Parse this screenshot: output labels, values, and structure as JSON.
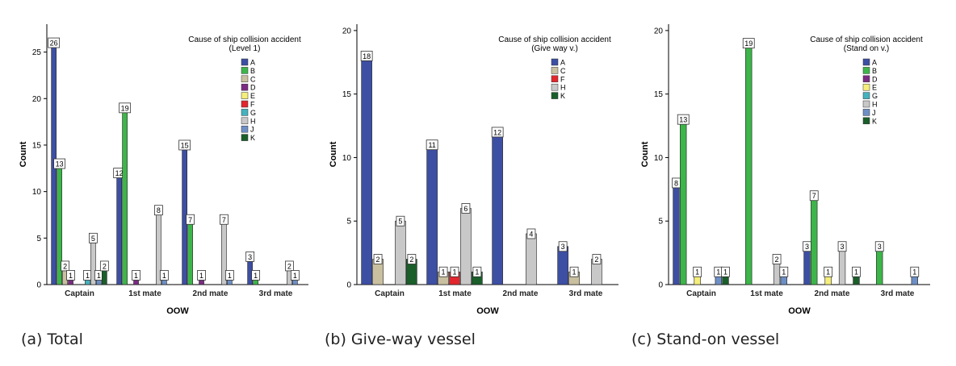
{
  "series_colors": {
    "A": "#3d4fa3",
    "B": "#3db54a",
    "C": "#c9c0a0",
    "D": "#7b2b83",
    "E": "#f5ee7a",
    "F": "#e3262d",
    "G": "#44b2bf",
    "H": "#c8c8c8",
    "J": "#6d8fc5",
    "K": "#1a5e2a"
  },
  "chart_data": [
    {
      "type": "bar",
      "xlabel": "OOW",
      "ylabel": "Count",
      "ylim": [
        0,
        28
      ],
      "yticks": [
        0,
        5,
        10,
        15,
        20,
        25
      ],
      "categories": [
        "Captain",
        "1st mate",
        "2nd mate",
        "3rd mate"
      ],
      "legend": {
        "title": "Cause of ship collision accident",
        "subtitle": "(Level 1)",
        "placement": "top-right"
      },
      "series": [
        {
          "name": "A",
          "values": [
            26,
            12,
            15,
            3
          ]
        },
        {
          "name": "B",
          "values": [
            13,
            19,
            7,
            1
          ]
        },
        {
          "name": "C",
          "values": [
            2,
            0,
            0,
            0
          ]
        },
        {
          "name": "D",
          "values": [
            1,
            1,
            1,
            0
          ]
        },
        {
          "name": "E",
          "values": [
            0,
            0,
            0,
            0
          ]
        },
        {
          "name": "F",
          "values": [
            0,
            0,
            0,
            0
          ]
        },
        {
          "name": "G",
          "values": [
            1,
            0,
            0,
            0
          ]
        },
        {
          "name": "H",
          "values": [
            5,
            8,
            7,
            2
          ]
        },
        {
          "name": "J",
          "values": [
            1,
            1,
            1,
            1
          ]
        },
        {
          "name": "K",
          "values": [
            2,
            0,
            0,
            0
          ]
        }
      ],
      "caption": "(a) Total"
    },
    {
      "type": "bar",
      "xlabel": "OOW",
      "ylabel": "Count",
      "ylim": [
        0,
        20.5
      ],
      "yticks": [
        0,
        5,
        10,
        15,
        20
      ],
      "categories": [
        "Captain",
        "1st mate",
        "2nd mate",
        "3rd mate"
      ],
      "legend": {
        "title": "Cause of ship collision accident",
        "subtitle": "(Give way v.)",
        "placement": "top-right"
      },
      "series": [
        {
          "name": "A",
          "values": [
            18,
            11,
            12,
            3
          ]
        },
        {
          "name": "C",
          "values": [
            2,
            1,
            0,
            1
          ]
        },
        {
          "name": "F",
          "values": [
            0,
            1,
            0,
            0
          ]
        },
        {
          "name": "H",
          "values": [
            5,
            6,
            4,
            2
          ]
        },
        {
          "name": "K",
          "values": [
            2,
            1,
            0,
            0
          ]
        }
      ],
      "caption": "(b) Give-way vessel"
    },
    {
      "type": "bar",
      "xlabel": "OOW",
      "ylabel": "Count",
      "ylim": [
        0,
        20.5
      ],
      "yticks": [
        0,
        5,
        10,
        15,
        20
      ],
      "categories": [
        "Captain",
        "1st mate",
        "2nd mate",
        "3rd mate"
      ],
      "legend": {
        "title": "Cause of ship collision accident",
        "subtitle": "(Stand on v.)",
        "placement": "top-right"
      },
      "series": [
        {
          "name": "A",
          "values": [
            8,
            0,
            3,
            0
          ]
        },
        {
          "name": "B",
          "values": [
            13,
            19,
            7,
            3
          ]
        },
        {
          "name": "D",
          "values": [
            0,
            0,
            0,
            0
          ]
        },
        {
          "name": "E",
          "values": [
            1,
            0,
            1,
            0
          ]
        },
        {
          "name": "G",
          "values": [
            0,
            0,
            0,
            0
          ]
        },
        {
          "name": "H",
          "values": [
            0,
            2,
            3,
            0
          ]
        },
        {
          "name": "J",
          "values": [
            1,
            1,
            0,
            1
          ]
        },
        {
          "name": "K",
          "values": [
            1,
            0,
            1,
            0
          ]
        }
      ],
      "caption": "(c) Stand-on vessel"
    }
  ]
}
